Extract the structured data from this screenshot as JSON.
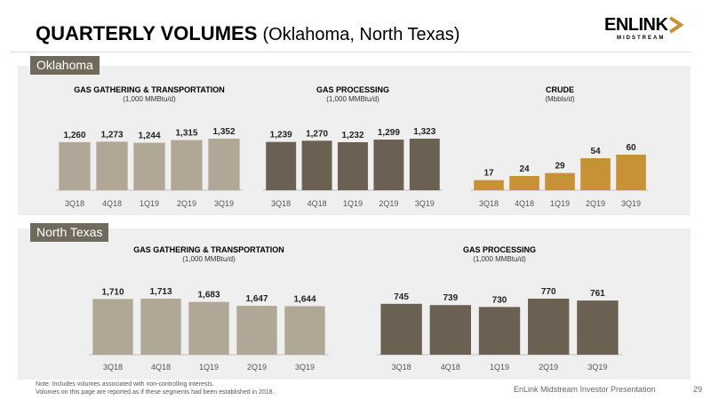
{
  "page": {
    "title": "QUARTERLY VOLUMES",
    "subtitle": "(Oklahoma, North Texas)",
    "logo_word": "ENLINK",
    "logo_sub": "MIDSTREAM",
    "note_line1": "Note: Includes volumes associated with non-controlling interests.",
    "note_line2": "Volumes on this page are reported as if these segments had been established in 2018.",
    "footer": "EnLink Midstream Investor Presentation",
    "page_number": "29"
  },
  "sections": {
    "oklahoma": "Oklahoma",
    "north_texas": "North Texas"
  },
  "colors": {
    "gathering": "#b0a796",
    "processing": "#6a6152",
    "crude": "#c79235",
    "tag": "#6f6a5b",
    "panel": "#efefef"
  },
  "chart_data": [
    {
      "type": "bar",
      "title": "GAS GATHERING & TRANSPORTATION",
      "unit": "(1,000 MMBtu/d)",
      "categories": [
        "3Q18",
        "4Q18",
        "1Q19",
        "2Q19",
        "3Q19"
      ],
      "values": [
        1260,
        1273,
        1244,
        1315,
        1352
      ],
      "labels": [
        "1,260",
        "1,273",
        "1,244",
        "1,315",
        "1,352"
      ],
      "color": "#b0a796"
    },
    {
      "type": "bar",
      "title": "GAS PROCESSING",
      "unit": "(1,000 MMBtu/d)",
      "categories": [
        "3Q18",
        "4Q18",
        "1Q19",
        "2Q19",
        "3Q19"
      ],
      "values": [
        1239,
        1270,
        1232,
        1299,
        1323
      ],
      "labels": [
        "1,239",
        "1,270",
        "1,232",
        "1,299",
        "1,323"
      ],
      "color": "#6a6152"
    },
    {
      "type": "bar",
      "title": "CRUDE",
      "unit": "(Mbbls/d)",
      "categories": [
        "3Q18",
        "4Q18",
        "1Q19",
        "2Q19",
        "3Q19"
      ],
      "values": [
        17,
        24,
        29,
        54,
        60
      ],
      "labels": [
        "17",
        "24",
        "29",
        "54",
        "60"
      ],
      "color": "#c79235"
    },
    {
      "type": "bar",
      "title": "GAS GATHERING & TRANSPORTATION",
      "unit": "(1,000 MMBtu/d)",
      "categories": [
        "3Q18",
        "4Q18",
        "1Q19",
        "2Q19",
        "3Q19"
      ],
      "values": [
        1710,
        1713,
        1683,
        1647,
        1644
      ],
      "labels": [
        "1,710",
        "1,713",
        "1,683",
        "1,647",
        "1,644"
      ],
      "color": "#b0a796"
    },
    {
      "type": "bar",
      "title": "GAS PROCESSING",
      "unit": "(1,000 MMBtu/d)",
      "categories": [
        "3Q18",
        "4Q18",
        "1Q19",
        "2Q19",
        "3Q19"
      ],
      "values": [
        745,
        739,
        730,
        770,
        761
      ],
      "labels": [
        "745",
        "739",
        "730",
        "770",
        "761"
      ],
      "color": "#6a6152"
    }
  ]
}
